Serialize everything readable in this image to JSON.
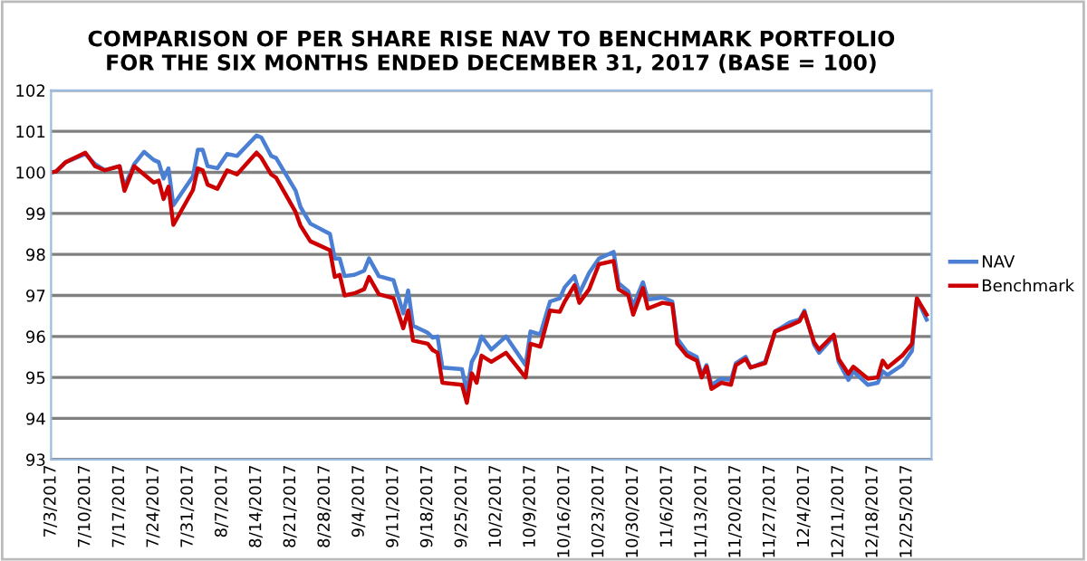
{
  "chart_data": {
    "type": "line",
    "title": "COMPARISON OF PER SHARE RISE NAV TO BENCHMARK PORTFOLIO\nFOR THE SIX MONTHS ENDED DECEMBER 31, 2017 (BASE = 100)",
    "x": [
      "2017-07-03",
      "2017-07-04",
      "2017-07-06",
      "2017-07-10",
      "2017-07-12",
      "2017-07-14",
      "2017-07-17",
      "2017-07-18",
      "2017-07-20",
      "2017-07-22",
      "2017-07-24",
      "2017-07-25",
      "2017-07-26",
      "2017-07-27",
      "2017-07-28",
      "2017-08-01",
      "2017-08-02",
      "2017-08-03",
      "2017-08-04",
      "2017-08-06",
      "2017-08-08",
      "2017-08-10",
      "2017-08-14",
      "2017-08-15",
      "2017-08-17",
      "2017-08-18",
      "2017-08-22",
      "2017-08-23",
      "2017-08-25",
      "2017-08-29",
      "2017-08-30",
      "2017-08-31",
      "2017-09-01",
      "2017-09-03",
      "2017-09-05",
      "2017-09-06",
      "2017-09-08",
      "2017-09-11",
      "2017-09-13",
      "2017-09-14",
      "2017-09-15",
      "2017-09-18",
      "2017-09-19",
      "2017-09-20",
      "2017-09-21",
      "2017-09-25",
      "2017-09-26",
      "2017-09-27",
      "2017-09-28",
      "2017-09-29",
      "2017-10-01",
      "2017-10-04",
      "2017-10-08",
      "2017-10-09",
      "2017-10-11",
      "2017-10-13",
      "2017-10-15",
      "2017-10-16",
      "2017-10-18",
      "2017-10-19",
      "2017-10-21",
      "2017-10-23",
      "2017-10-26",
      "2017-10-27",
      "2017-10-29",
      "2017-10-30",
      "2017-11-01",
      "2017-11-02",
      "2017-11-05",
      "2017-11-07",
      "2017-11-08",
      "2017-11-10",
      "2017-11-12",
      "2017-11-13",
      "2017-11-14",
      "2017-11-15",
      "2017-11-17",
      "2017-11-19",
      "2017-11-20",
      "2017-11-22",
      "2017-11-23",
      "2017-11-26",
      "2017-11-28",
      "2017-12-01",
      "2017-12-03",
      "2017-12-04",
      "2017-12-06",
      "2017-12-07",
      "2017-12-10",
      "2017-12-11",
      "2017-12-13",
      "2017-12-14",
      "2017-12-17",
      "2017-12-19",
      "2017-12-20",
      "2017-12-21",
      "2017-12-24",
      "2017-12-26",
      "2017-12-27",
      "2017-12-29"
    ],
    "series": [
      {
        "name": "NAV",
        "color": "#4a7fd4",
        "values": [
          100.0,
          100.02,
          100.25,
          100.45,
          100.2,
          100.05,
          100.15,
          99.65,
          100.2,
          100.5,
          100.3,
          100.25,
          99.85,
          100.1,
          99.2,
          99.9,
          100.55,
          100.55,
          100.15,
          100.1,
          100.45,
          100.4,
          100.9,
          100.85,
          100.4,
          100.35,
          99.55,
          99.15,
          98.75,
          98.5,
          97.9,
          97.9,
          97.47,
          97.5,
          97.6,
          97.9,
          97.47,
          97.37,
          96.56,
          97.12,
          96.26,
          96.09,
          95.97,
          96.0,
          95.24,
          95.2,
          94.65,
          95.38,
          95.6,
          96.0,
          95.68,
          96.0,
          95.3,
          96.12,
          96.05,
          96.85,
          96.93,
          97.2,
          97.47,
          97.05,
          97.55,
          97.9,
          98.06,
          97.3,
          97.1,
          96.75,
          97.32,
          96.9,
          96.95,
          96.85,
          95.95,
          95.62,
          95.5,
          95.05,
          95.3,
          94.82,
          94.97,
          94.94,
          95.35,
          95.5,
          95.24,
          95.38,
          96.12,
          96.34,
          96.41,
          96.63,
          95.8,
          95.6,
          96.0,
          95.38,
          94.94,
          95.15,
          94.82,
          94.87,
          95.15,
          95.06,
          95.3,
          95.65,
          96.93,
          96.41
        ]
      },
      {
        "name": "Benchmark",
        "color": "#cc0000",
        "values": [
          100.0,
          100.02,
          100.25,
          100.48,
          100.15,
          100.05,
          100.15,
          99.55,
          100.15,
          99.95,
          99.75,
          99.8,
          99.35,
          99.65,
          98.72,
          99.57,
          100.1,
          100.05,
          99.7,
          99.6,
          100.05,
          99.95,
          100.48,
          100.35,
          99.95,
          99.87,
          99.03,
          98.7,
          98.32,
          98.1,
          97.45,
          97.5,
          97.0,
          97.05,
          97.15,
          97.45,
          97.03,
          96.93,
          96.2,
          96.63,
          95.9,
          95.82,
          95.67,
          95.6,
          94.87,
          94.82,
          94.38,
          95.1,
          94.87,
          95.53,
          95.38,
          95.6,
          95.0,
          95.82,
          95.75,
          96.63,
          96.6,
          96.85,
          97.25,
          96.82,
          97.15,
          97.76,
          97.84,
          97.15,
          97.0,
          96.53,
          97.18,
          96.68,
          96.82,
          96.78,
          95.82,
          95.53,
          95.41,
          95.0,
          95.26,
          94.72,
          94.87,
          94.82,
          95.3,
          95.45,
          95.24,
          95.35,
          96.12,
          96.26,
          96.37,
          96.59,
          95.85,
          95.68,
          96.04,
          95.45,
          95.09,
          95.26,
          94.97,
          95.0,
          95.41,
          95.24,
          95.53,
          95.82,
          96.93,
          96.53
        ]
      }
    ],
    "xlim": [
      "2017-07-03",
      "2017-12-30"
    ],
    "xticks": [
      {
        "value": "2017-07-03",
        "label": "7/3/2017"
      },
      {
        "value": "2017-07-10",
        "label": "7/10/2017"
      },
      {
        "value": "2017-07-17",
        "label": "7/17/2017"
      },
      {
        "value": "2017-07-24",
        "label": "7/24/2017"
      },
      {
        "value": "2017-07-31",
        "label": "7/31/2017"
      },
      {
        "value": "2017-08-07",
        "label": "8/7/2017"
      },
      {
        "value": "2017-08-14",
        "label": "8/14/2017"
      },
      {
        "value": "2017-08-21",
        "label": "8/21/2017"
      },
      {
        "value": "2017-08-28",
        "label": "8/28/2017"
      },
      {
        "value": "2017-09-04",
        "label": "9/4/2017"
      },
      {
        "value": "2017-09-11",
        "label": "9/11/2017"
      },
      {
        "value": "2017-09-18",
        "label": "9/18/2017"
      },
      {
        "value": "2017-09-25",
        "label": "9/25/2017"
      },
      {
        "value": "2017-10-02",
        "label": "10/2/2017"
      },
      {
        "value": "2017-10-09",
        "label": "10/9/2017"
      },
      {
        "value": "2017-10-16",
        "label": "10/16/2017"
      },
      {
        "value": "2017-10-23",
        "label": "10/23/2017"
      },
      {
        "value": "2017-10-30",
        "label": "10/30/2017"
      },
      {
        "value": "2017-11-06",
        "label": "11/6/2017"
      },
      {
        "value": "2017-11-13",
        "label": "11/13/2017"
      },
      {
        "value": "2017-11-20",
        "label": "11/20/2017"
      },
      {
        "value": "2017-11-27",
        "label": "11/27/2017"
      },
      {
        "value": "2017-12-04",
        "label": "12/4/2017"
      },
      {
        "value": "2017-12-11",
        "label": "12/11/2017"
      },
      {
        "value": "2017-12-18",
        "label": "12/18/2017"
      },
      {
        "value": "2017-12-25",
        "label": "12/25/2017"
      }
    ],
    "ylim": [
      93,
      102
    ],
    "yticks": [
      93,
      94,
      95,
      96,
      97,
      98,
      99,
      100,
      101,
      102
    ],
    "grid": "y",
    "legend": "right",
    "marker": "none",
    "line_style": "solid"
  }
}
